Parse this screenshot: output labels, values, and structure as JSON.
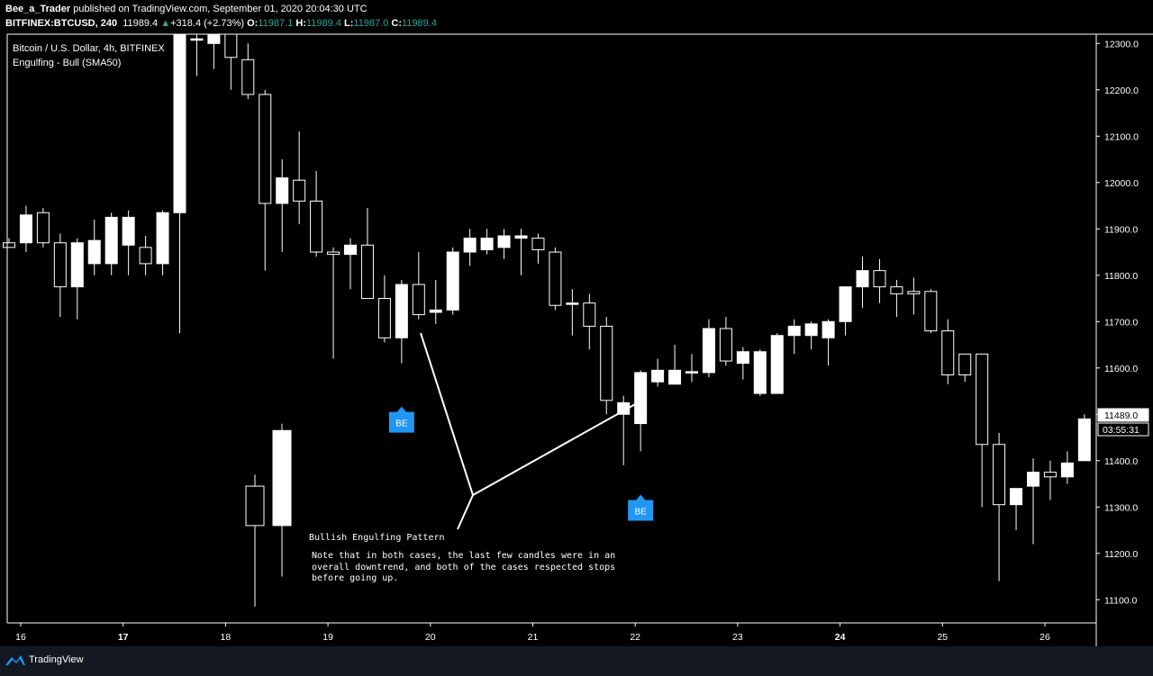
{
  "header": {
    "publisher": "Bee_a_Trader",
    "published_text": "published on TradingView.com, September 01, 2020 20:04:30 UTC",
    "symbol": "BITFINEX:BTCUSD, 240",
    "last": "11989.4",
    "change": "+318.4 (+2.73%)",
    "o_label": "O:",
    "o_value": "11987.1",
    "h_label": "H:",
    "h_value": "11989.4",
    "l_label": "L:",
    "l_value": "11987.0",
    "c_label": "C:",
    "c_value": "11989.4"
  },
  "legend": {
    "title": "Bitcoin / U.S. Dollar, 4h, BITFINEX",
    "indicator": "Engulfing - Bull (SMA50)"
  },
  "annotation": {
    "title": "Bullish Engulfing Pattern",
    "note": "Note that in both cases, the last few candles were in an overall downtrend, and both of the cases respected stops before going up."
  },
  "price_label": {
    "price": "11489.0",
    "countdown": "03:55:31"
  },
  "footer": {
    "brand": "TradingView"
  },
  "colors": {
    "background": "#000000",
    "axis_text": "#ffffff",
    "marker": "#2196f3",
    "footer": "#131722"
  },
  "chart_data": {
    "type": "candlestick",
    "ylim": [
      11050,
      12320
    ],
    "y_ticks": [
      11100,
      11200,
      11300,
      11400,
      11500,
      11600,
      11700,
      11800,
      11900,
      12000,
      12100,
      12200,
      12300
    ],
    "y_tick_labels": [
      "11100.0",
      "11200.0",
      "11300.0",
      "11400.0",
      "11500.0",
      "11600.0",
      "11700.0",
      "11800.0",
      "11900.0",
      "12000.0",
      "12100.0",
      "12200.0",
      "12300.0"
    ],
    "x_tick_labels": [
      "16",
      "17",
      "18",
      "19",
      "20",
      "21",
      "22",
      "23",
      "24",
      "25",
      "26"
    ],
    "x_tick_bold": [
      "17",
      "24"
    ],
    "candles_main": [
      {
        "o": 11870,
        "h": 11880,
        "l": 11860,
        "c": 11860
      },
      {
        "o": 11870,
        "h": 11950,
        "l": 11850,
        "c": 11930
      },
      {
        "o": 11935,
        "h": 11945,
        "l": 11860,
        "c": 11870
      },
      {
        "o": 11870,
        "h": 11890,
        "l": 11710,
        "c": 11775
      },
      {
        "o": 11775,
        "h": 11880,
        "l": 11705,
        "c": 11870
      },
      {
        "o": 11825,
        "h": 11920,
        "l": 11800,
        "c": 11875
      },
      {
        "o": 11825,
        "h": 11935,
        "l": 11800,
        "c": 11925
      },
      {
        "o": 11865,
        "h": 11940,
        "l": 11800,
        "c": 11925
      },
      {
        "o": 11860,
        "h": 11885,
        "l": 11800,
        "c": 11825
      },
      {
        "o": 11825,
        "h": 11940,
        "l": 11800,
        "c": 11935
      },
      {
        "o": 11935,
        "h": 12500,
        "l": 11675,
        "c": 12500
      },
      {
        "o": 12310,
        "h": 12360,
        "l": 12230,
        "c": 12310
      },
      {
        "o": 12300,
        "h": 12340,
        "l": 12245,
        "c": 12320
      },
      {
        "o": 12320,
        "h": 12340,
        "l": 12200,
        "c": 12270
      },
      {
        "o": 12265,
        "h": 12300,
        "l": 12180,
        "c": 12190
      },
      {
        "o": 12190,
        "h": 12200,
        "l": 11810,
        "c": 11955
      },
      {
        "o": 11955,
        "h": 12050,
        "l": 11850,
        "c": 12010
      },
      {
        "o": 12005,
        "h": 12110,
        "l": 11910,
        "c": 11960
      },
      {
        "o": 11960,
        "h": 12025,
        "l": 11840,
        "c": 11850
      },
      {
        "o": 11850,
        "h": 11860,
        "l": 11620,
        "c": 11845
      },
      {
        "o": 11845,
        "h": 11880,
        "l": 11770,
        "c": 11865
      },
      {
        "o": 11865,
        "h": 11945,
        "l": 11750,
        "c": 11750
      },
      {
        "o": 11750,
        "h": 11800,
        "l": 11655,
        "c": 11665
      },
      {
        "o": 11665,
        "h": 11790,
        "l": 11610,
        "c": 11780
      },
      {
        "o": 11780,
        "h": 11850,
        "l": 11705,
        "c": 11715
      },
      {
        "o": 11720,
        "h": 11790,
        "l": 11695,
        "c": 11725
      },
      {
        "o": 11725,
        "h": 11860,
        "l": 11715,
        "c": 11850
      },
      {
        "o": 11850,
        "h": 11900,
        "l": 11820,
        "c": 11880
      },
      {
        "o": 11855,
        "h": 11900,
        "l": 11845,
        "c": 11880
      },
      {
        "o": 11860,
        "h": 11900,
        "l": 11835,
        "c": 11885
      },
      {
        "o": 11880,
        "h": 11900,
        "l": 11800,
        "c": 11885
      },
      {
        "o": 11880,
        "h": 11890,
        "l": 11825,
        "c": 11855
      },
      {
        "o": 11850,
        "h": 11860,
        "l": 11725,
        "c": 11735
      },
      {
        "o": 11740,
        "h": 11770,
        "l": 11670,
        "c": 11740
      },
      {
        "o": 11740,
        "h": 11760,
        "l": 11640,
        "c": 11690
      },
      {
        "o": 11690,
        "h": 11710,
        "l": 11500,
        "c": 11530
      },
      {
        "o": 11500,
        "h": 11540,
        "l": 11390,
        "c": 11525
      },
      {
        "o": 11480,
        "h": 11595,
        "l": 11420,
        "c": 11590
      },
      {
        "o": 11570,
        "h": 11620,
        "l": 11560,
        "c": 11595
      },
      {
        "o": 11565,
        "h": 11650,
        "l": 11565,
        "c": 11595
      },
      {
        "o": 11590,
        "h": 11630,
        "l": 11570,
        "c": 11592
      },
      {
        "o": 11590,
        "h": 11705,
        "l": 11580,
        "c": 11685
      },
      {
        "o": 11685,
        "h": 11710,
        "l": 11605,
        "c": 11615
      },
      {
        "o": 11610,
        "h": 11645,
        "l": 11575,
        "c": 11635
      },
      {
        "o": 11545,
        "h": 11640,
        "l": 11540,
        "c": 11635
      },
      {
        "o": 11545,
        "h": 11675,
        "l": 11545,
        "c": 11670
      },
      {
        "o": 11670,
        "h": 11705,
        "l": 11630,
        "c": 11690
      },
      {
        "o": 11670,
        "h": 11700,
        "l": 11640,
        "c": 11695
      },
      {
        "o": 11665,
        "h": 11705,
        "l": 11605,
        "c": 11700
      },
      {
        "o": 11700,
        "h": 11775,
        "l": 11670,
        "c": 11775
      },
      {
        "o": 11775,
        "h": 11840,
        "l": 11730,
        "c": 11810
      },
      {
        "o": 11810,
        "h": 11835,
        "l": 11740,
        "c": 11775
      },
      {
        "o": 11775,
        "h": 11790,
        "l": 11710,
        "c": 11760
      },
      {
        "o": 11765,
        "h": 11795,
        "l": 11715,
        "c": 11760
      },
      {
        "o": 11765,
        "h": 11770,
        "l": 11675,
        "c": 11680
      },
      {
        "o": 11680,
        "h": 11705,
        "l": 11565,
        "c": 11585
      },
      {
        "o": 11630,
        "h": 11630,
        "l": 11570,
        "c": 11585
      },
      {
        "o": 11630,
        "h": 11630,
        "l": 11300,
        "c": 11435
      },
      {
        "o": 11435,
        "h": 11460,
        "l": 11140,
        "c": 11305
      },
      {
        "o": 11305,
        "h": 11340,
        "l": 11250,
        "c": 11340
      },
      {
        "o": 11345,
        "h": 11405,
        "l": 11220,
        "c": 11375
      },
      {
        "o": 11375,
        "h": 11400,
        "l": 11315,
        "c": 11365
      },
      {
        "o": 11365,
        "h": 11420,
        "l": 11350,
        "c": 11395
      },
      {
        "o": 11400,
        "h": 11500,
        "l": 11400,
        "c": 11490
      }
    ],
    "candles_inset": [
      {
        "o": 11260,
        "h": 11370,
        "l": 11085,
        "c": 11345
      },
      {
        "o": 11260,
        "h": 11480,
        "l": 11150,
        "c": 11465
      }
    ],
    "markers": [
      {
        "label": "BE",
        "position": "below",
        "candle": 23
      },
      {
        "label": "BE",
        "position": "below",
        "candle": 37
      }
    ]
  }
}
